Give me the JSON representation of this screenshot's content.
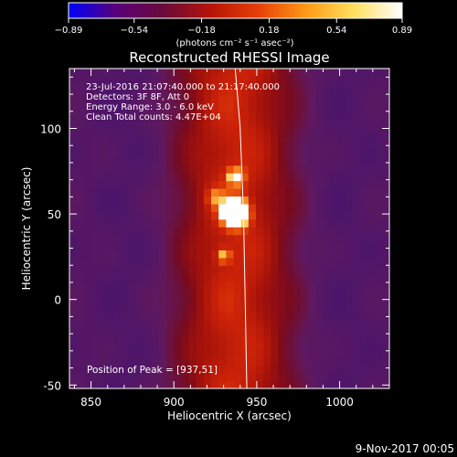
{
  "colorbar": {
    "min_label": "−0.89",
    "tick_labels": [
      "−0.89",
      "−0.54",
      "−0.18",
      "0.18",
      "0.54",
      "0.89"
    ],
    "tick_values": [
      -0.89,
      -0.54,
      -0.18,
      0.18,
      0.54,
      0.89
    ],
    "units_label": "(photons cm⁻² s⁻¹ asec⁻²)",
    "colors": [
      "#0000ff",
      "#5a007a",
      "#6a0a3a",
      "#b81406",
      "#e84008",
      "#ff9a16",
      "#ffe060",
      "#ffffff"
    ]
  },
  "chart_data": {
    "type": "heatmap",
    "title": "Reconstructed RHESSI Image",
    "xlabel": "Heliocentric X (arcsec)",
    "ylabel": "Heliocentric Y (arcsec)",
    "xlim": [
      837,
      1030
    ],
    "ylim": [
      -52,
      135
    ],
    "x_ticks": [
      850,
      900,
      950,
      1000
    ],
    "y_ticks": [
      -50,
      0,
      50,
      100
    ],
    "info_lines": [
      "23-Jul-2016 21:07:40.000 to 21:17:40.000",
      "Detectors: 3F 8F, Att 0",
      "Energy Range: 3.0 - 6.0 keV",
      "Clean     Total counts: 4.47E+04"
    ],
    "peak_text": "Position of Peak = [937,51]",
    "peak": [
      937,
      51
    ],
    "value_range": [
      -0.89,
      0.89
    ],
    "limb": [
      [
        937,
        135
      ],
      [
        940,
        100
      ],
      [
        942,
        50
      ],
      [
        943,
        0
      ],
      [
        944,
        -52
      ]
    ],
    "sources": [
      {
        "x": 937,
        "y": 51,
        "sigma": 5,
        "amp": 1.25
      },
      {
        "x": 937,
        "y": 72,
        "sigma": 3.5,
        "amp": 0.45
      },
      {
        "x": 930,
        "y": 26,
        "sigma": 3,
        "amp": 0.35
      },
      {
        "x": 925,
        "y": 60,
        "sigma": 4,
        "amp": 0.25
      }
    ]
  },
  "footer_date": "9-Nov-2017 00:05"
}
